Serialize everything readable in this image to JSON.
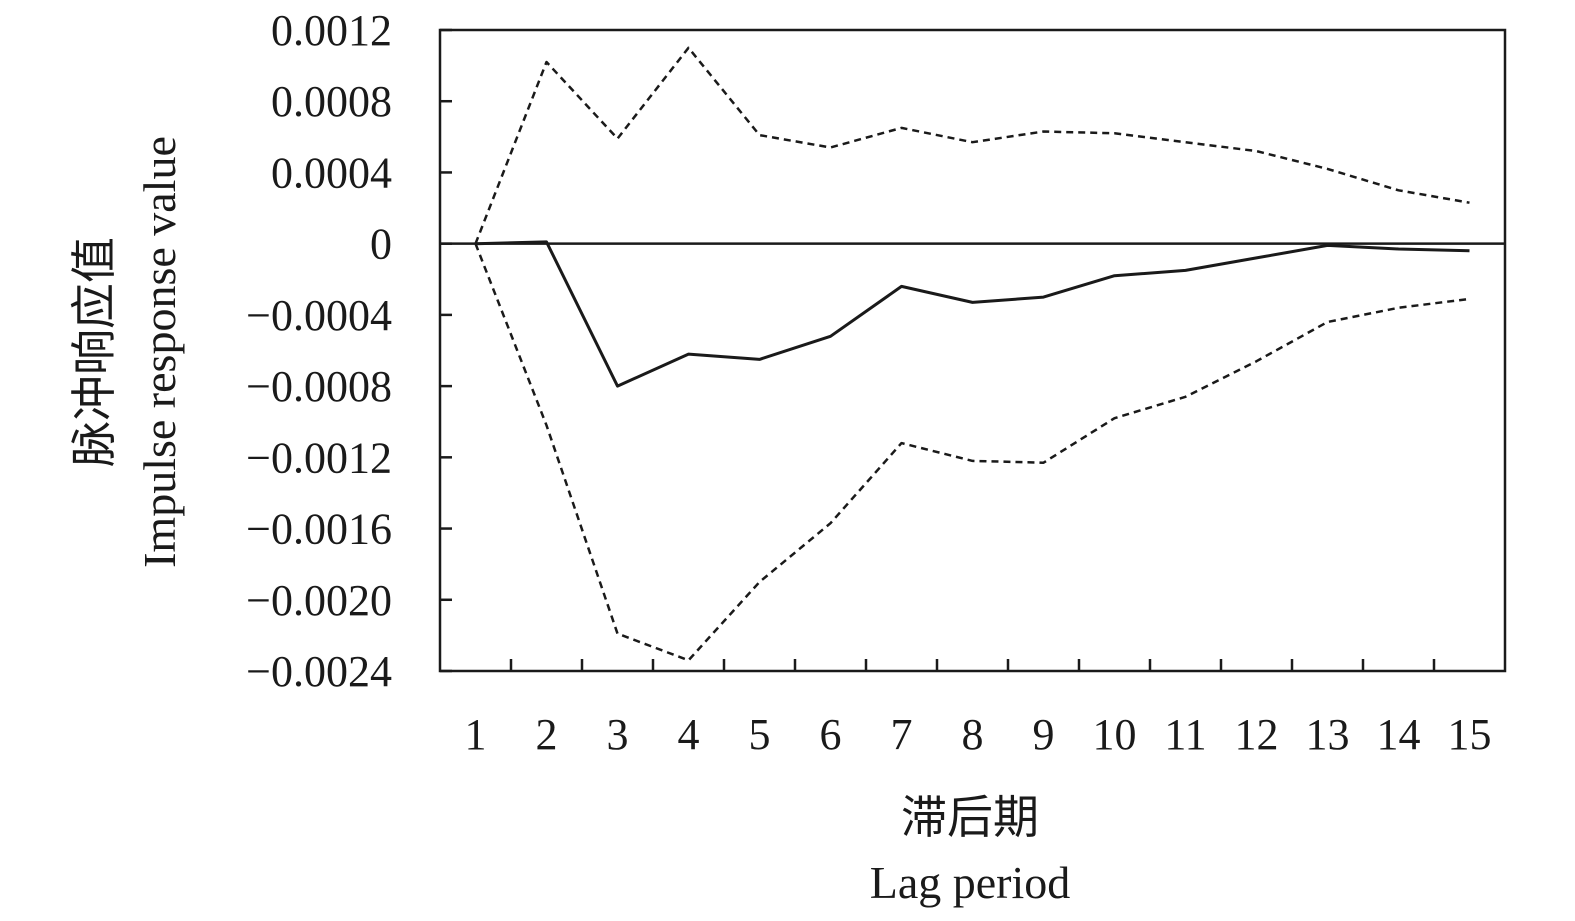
{
  "chart_data": {
    "type": "line",
    "xlabel_cn": "滞后期",
    "xlabel_en": "Lag period",
    "ylabel_cn": "脉冲响应值",
    "ylabel_en": "Impulse response value",
    "x": [
      1,
      2,
      3,
      4,
      5,
      6,
      7,
      8,
      9,
      10,
      11,
      12,
      13,
      14,
      15
    ],
    "xlim": [
      0.5,
      15.5
    ],
    "ylim": [
      -0.0024,
      0.0012
    ],
    "yticks": [
      0.0012,
      0.0008,
      0.0004,
      0,
      -0.0004,
      -0.0008,
      -0.0012,
      -0.0016,
      -0.002,
      -0.0024
    ],
    "ytick_labels": [
      "0.0012",
      "0.0008",
      "0.0004",
      "0",
      "−0.0004",
      "−0.0008",
      "−0.0012",
      "−0.0016",
      "−0.0020",
      "−0.0024"
    ],
    "xtick_labels": [
      "1",
      "2",
      "3",
      "4",
      "5",
      "6",
      "7",
      "8",
      "9",
      "10",
      "11",
      "12",
      "13",
      "14",
      "15"
    ],
    "zero_line": true,
    "series": [
      {
        "style": "solid",
        "values": [
          0.0,
          1e-05,
          -0.0008,
          -0.00062,
          -0.00065,
          -0.00052,
          -0.00024,
          -0.00033,
          -0.0003,
          -0.00018,
          -0.00015,
          -8e-05,
          -1e-05,
          -3e-05,
          -4e-05
        ]
      },
      {
        "style": "dashed",
        "values": [
          0.0,
          0.00102,
          0.00059,
          0.0011,
          0.00061,
          0.00054,
          0.00065,
          0.00057,
          0.00063,
          0.00062,
          0.00057,
          0.00052,
          0.00042,
          0.0003,
          0.00023
        ]
      },
      {
        "style": "dashed",
        "values": [
          0.0,
          -0.00102,
          -0.00219,
          -0.00234,
          -0.0019,
          -0.00157,
          -0.00112,
          -0.00122,
          -0.00123,
          -0.00098,
          -0.00086,
          -0.00066,
          -0.00044,
          -0.00036,
          -0.00031
        ]
      }
    ]
  }
}
